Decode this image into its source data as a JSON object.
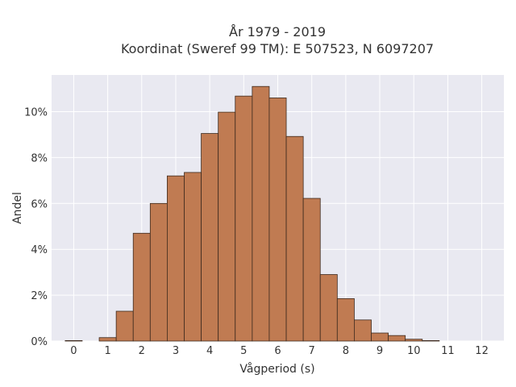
{
  "chart_data": {
    "type": "bar",
    "title_line1": "År 1979 - 2019",
    "title_line2": "Koordinat (Sweref 99 TM): E 507523, N 6097207",
    "xlabel": "Vågperiod (s)",
    "ylabel": "Andel",
    "xlim": [
      -0.65,
      12.65
    ],
    "ylim": [
      0,
      11.6
    ],
    "x_ticks": [
      0,
      1,
      2,
      3,
      4,
      5,
      6,
      7,
      8,
      9,
      10,
      11,
      12
    ],
    "y_ticks": [
      0,
      2,
      4,
      6,
      8,
      10
    ],
    "y_tick_labels": [
      "0%",
      "2%",
      "4%",
      "6%",
      "8%",
      "10%"
    ],
    "bin_width": 0.5,
    "x": [
      0,
      0.5,
      1,
      1.5,
      2,
      2.5,
      3,
      3.5,
      4,
      4.5,
      5,
      5.5,
      6,
      6.5,
      7,
      7.5,
      8,
      8.5,
      9,
      9.5,
      10,
      10.5,
      11,
      11.5,
      12
    ],
    "values": [
      0.02,
      0.0,
      0.15,
      1.3,
      4.7,
      6.0,
      7.2,
      7.35,
      9.05,
      9.98,
      10.68,
      11.1,
      10.6,
      8.92,
      6.22,
      2.9,
      1.85,
      0.92,
      0.35,
      0.24,
      0.08,
      0.02,
      0.0,
      0.0,
      0.0
    ],
    "bar_color": "#c07b52",
    "bar_edge_color": "#3d2a1e",
    "plot_bg": "#e9e9f1",
    "grid": true,
    "grid_color": "#ffffff"
  }
}
